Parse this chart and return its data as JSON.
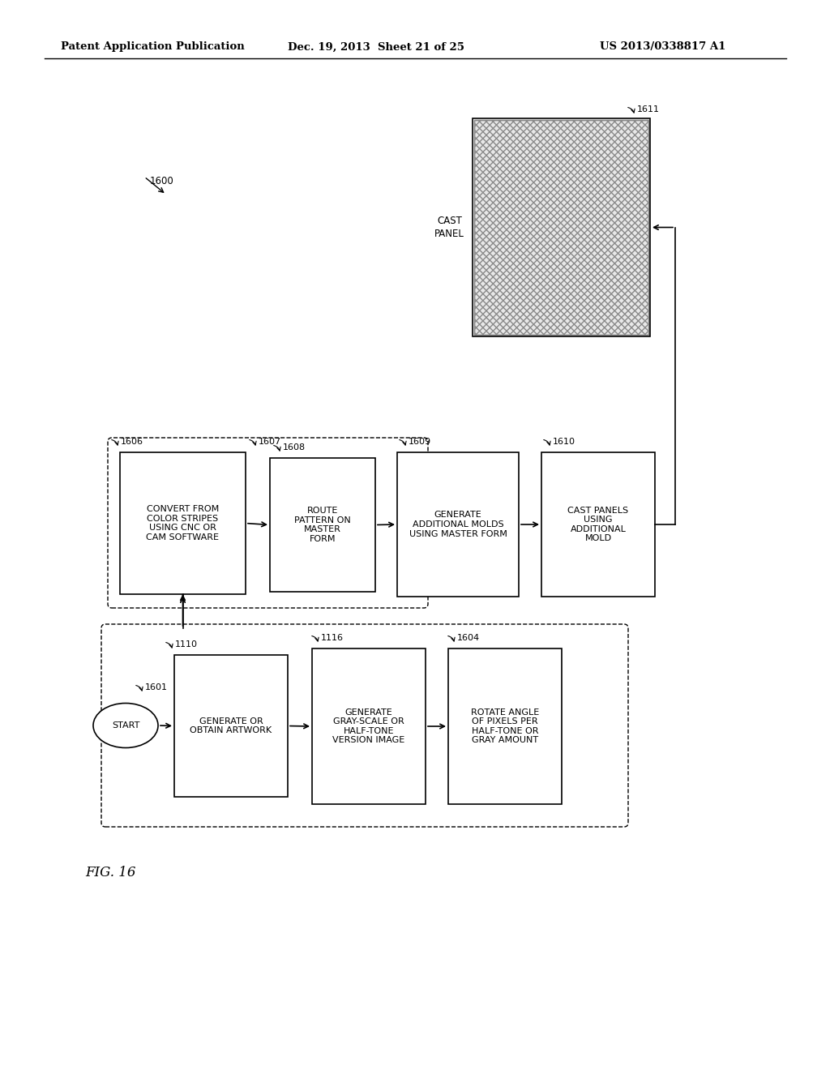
{
  "title_left": "Patent Application Publication",
  "title_mid": "Dec. 19, 2013  Sheet 21 of 25",
  "title_right": "US 2013/0338817 A1",
  "fig_label": "FIG. 16",
  "background_color": "#ffffff"
}
